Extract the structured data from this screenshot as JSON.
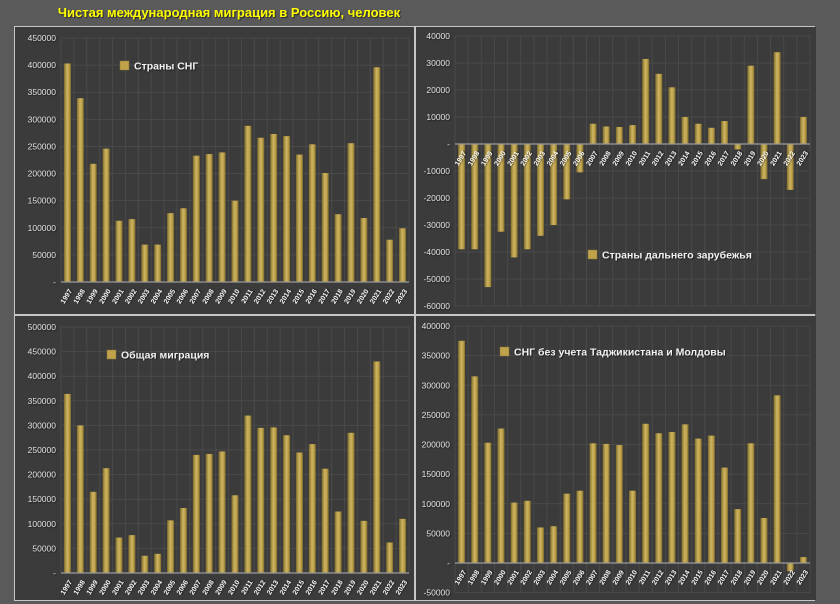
{
  "title": "Чистая международная миграция в Россию, человек",
  "colors": {
    "bar": "#BFA24A",
    "bar_light": "#CDB463",
    "bar_dark": "#7A682C",
    "page_background": "#5A5A5A",
    "chart_background": "#3B3B3B",
    "gridline": "#4A4A4A",
    "axis_line": "#9A9A9A",
    "title_text": "#FFFF00",
    "axis_text": "#E2E2E2",
    "legend_text": "#F2F2F2",
    "separator": "#C6C6C6"
  },
  "chart_data": [
    {
      "type": "bar",
      "title": "Страны СНГ",
      "legend_position": "top-center",
      "grid": true,
      "ylim": [
        0,
        450000
      ],
      "ytick": 50000,
      "zero_label": "-",
      "categories": [
        "1997",
        "1998",
        "1999",
        "2000",
        "2001",
        "2002",
        "2003",
        "2004",
        "2005",
        "2006",
        "2007",
        "2008",
        "2009",
        "2010",
        "2011",
        "2012",
        "2013",
        "2014",
        "2015",
        "2016",
        "2017",
        "2018",
        "2019",
        "2020",
        "2021",
        "2022",
        "2023"
      ],
      "values": [
        403000,
        339000,
        218000,
        246000,
        113000,
        116000,
        69000,
        69000,
        127000,
        136000,
        233000,
        236000,
        239000,
        150000,
        288000,
        266000,
        273000,
        269000,
        235000,
        254000,
        201000,
        125000,
        256000,
        118000,
        396000,
        78000,
        99000
      ]
    },
    {
      "type": "bar",
      "title": "Страны дальнего зарубежья",
      "legend_position": "bottom-right",
      "grid": true,
      "ylim": [
        -60000,
        40000
      ],
      "ytick": 10000,
      "zero_label": "-",
      "categories": [
        "1997",
        "1998",
        "1999",
        "2000",
        "2001",
        "2002",
        "2003",
        "2004",
        "2005",
        "2006",
        "2007",
        "2008",
        "2009",
        "2010",
        "2011",
        "2012",
        "2013",
        "2014",
        "2015",
        "2016",
        "2017",
        "2018",
        "2019",
        "2020",
        "2021",
        "2022",
        "2023"
      ],
      "values": [
        -39000,
        -39000,
        -53000,
        -32500,
        -42000,
        -39000,
        -34000,
        -30000,
        -20500,
        -10500,
        7500,
        6500,
        6300,
        7000,
        31500,
        26000,
        21000,
        10000,
        7500,
        6000,
        8500,
        -2000,
        29000,
        -13000,
        34000,
        -17000,
        10000
      ]
    },
    {
      "type": "bar",
      "title": "Общая миграция",
      "legend_position": "top-center",
      "grid": true,
      "ylim": [
        0,
        500000
      ],
      "ytick": 50000,
      "zero_label": "-",
      "categories": [
        "1997",
        "1998",
        "1999",
        "2000",
        "2001",
        "2002",
        "2003",
        "2004",
        "2005",
        "2006",
        "2007",
        "2008",
        "2009",
        "2010",
        "2011",
        "2012",
        "2013",
        "2014",
        "2015",
        "2016",
        "2017",
        "2018",
        "2019",
        "2020",
        "2021",
        "2022",
        "2023"
      ],
      "values": [
        364000,
        300000,
        165000,
        213000,
        72000,
        77000,
        35000,
        39000,
        107000,
        132000,
        240000,
        242000,
        247000,
        158000,
        320000,
        295000,
        296000,
        280000,
        245000,
        262000,
        212000,
        125000,
        285000,
        106000,
        430000,
        62000,
        110000
      ]
    },
    {
      "type": "bar",
      "title": "СНГ без учета Таджикистана и Молдовы",
      "legend_position": "top-center",
      "grid": true,
      "ylim": [
        -50000,
        400000
      ],
      "ytick": 50000,
      "zero_label": "-",
      "categories": [
        "1997",
        "1998",
        "1999",
        "2000",
        "2001",
        "2002",
        "2003",
        "2004",
        "2005",
        "2006",
        "2007",
        "2008",
        "2009",
        "2010",
        "2011",
        "2012",
        "2013",
        "2014",
        "2015",
        "2016",
        "2017",
        "2018",
        "2019",
        "2020",
        "2021",
        "2022",
        "2023"
      ],
      "values": [
        375000,
        315000,
        203000,
        227000,
        102000,
        105000,
        60000,
        62000,
        117000,
        122000,
        202000,
        201000,
        199000,
        122000,
        235000,
        219000,
        221000,
        234000,
        210000,
        215000,
        161000,
        91000,
        202000,
        76000,
        283000,
        -14000,
        10000
      ]
    }
  ]
}
